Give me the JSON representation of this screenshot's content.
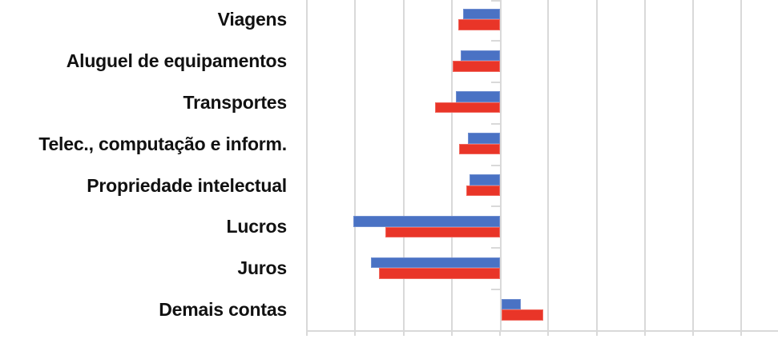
{
  "chart_data": {
    "type": "bar",
    "orientation": "horizontal",
    "title": "",
    "categories": [
      "Viagens",
      "Aluguel de equipamentos",
      "Transportes",
      "Telec., computação e inform.",
      "Propriedade intelectual",
      "Lucros",
      "Juros",
      "Demais contas"
    ],
    "series": [
      {
        "name": "series-blue",
        "color": "#4A72C4",
        "values": [
          -0.77,
          -0.81,
          -0.91,
          -0.66,
          -0.63,
          -3.03,
          -2.68,
          0.4
        ]
      },
      {
        "name": "series-red",
        "color": "#E93528",
        "values": [
          -0.87,
          -0.98,
          -1.34,
          -0.84,
          -0.7,
          -2.38,
          -2.5,
          0.86
        ]
      }
    ],
    "x_axis": {
      "min": -4,
      "max": 5.75,
      "gridline_interval": 1,
      "zero_line": 0,
      "tick_labels_visible": false,
      "units": "gridline intervals (numeric axis labels not visible in image)"
    },
    "legend": {
      "visible": false
    },
    "grid": {
      "visible": true,
      "color": "#D9D9D9"
    },
    "background": "#FFFFFF"
  }
}
